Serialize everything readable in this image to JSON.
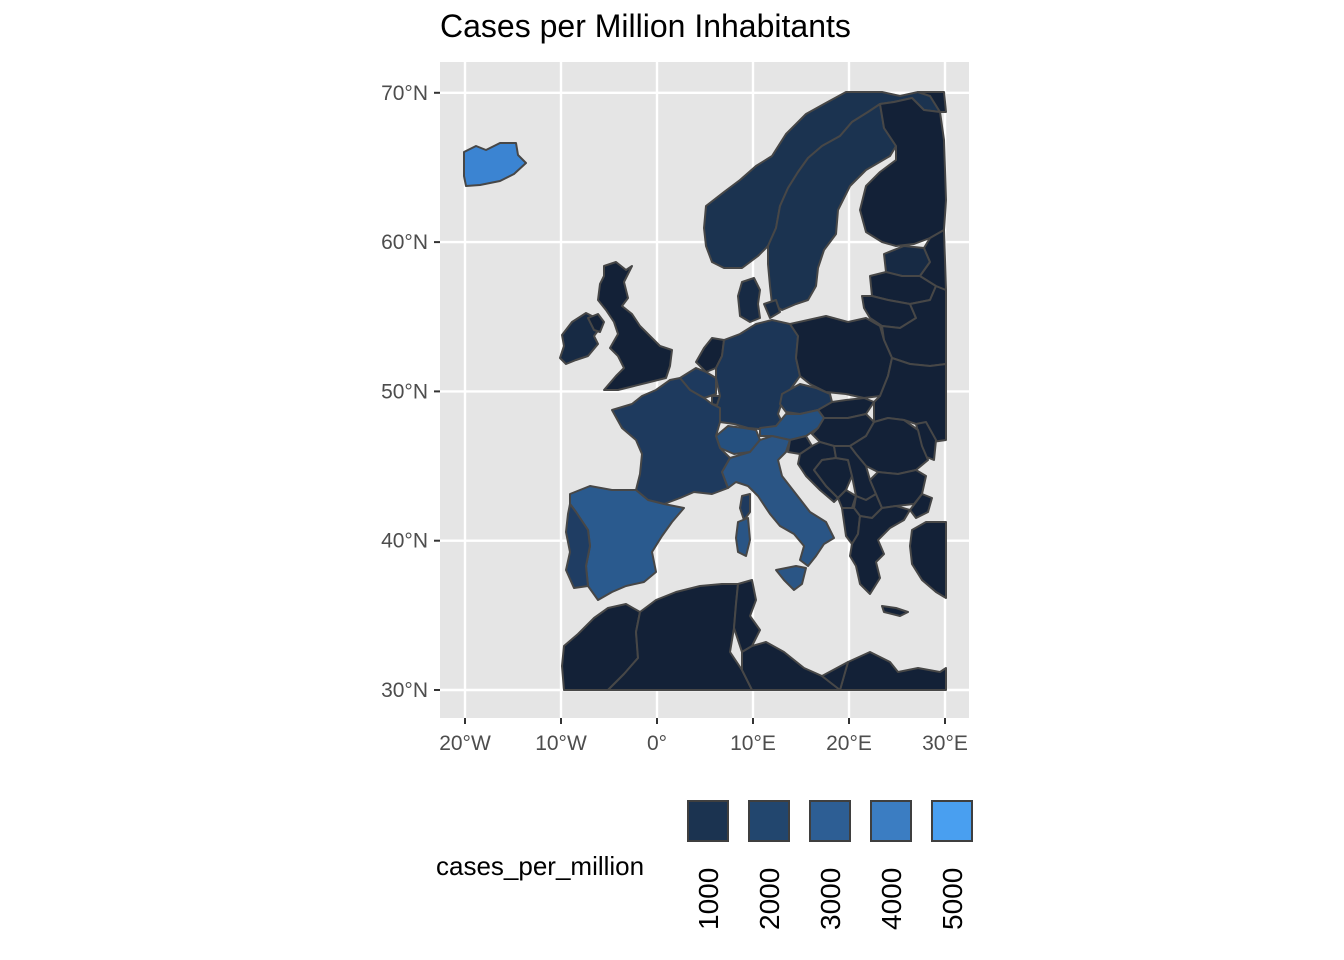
{
  "title": "Cases per Million Inhabitants",
  "map": {
    "panel_background": "#e5e5e5",
    "grid_color": "#ffffff",
    "border_color": "#474747",
    "x_ticks": [
      {
        "lon": -20,
        "label": "20°W"
      },
      {
        "lon": -10,
        "label": "10°W"
      },
      {
        "lon": 0,
        "label": "0°"
      },
      {
        "lon": 10,
        "label": "10°E"
      },
      {
        "lon": 20,
        "label": "20°E"
      },
      {
        "lon": 30,
        "label": "30°E"
      }
    ],
    "y_ticks": [
      {
        "lat": 30,
        "label": "30°N"
      },
      {
        "lat": 40,
        "label": "40°N"
      },
      {
        "lat": 50,
        "label": "50°N"
      },
      {
        "lat": 60,
        "label": "60°N"
      },
      {
        "lat": 70,
        "label": "70°N"
      }
    ]
  },
  "legend": {
    "title": "cases_per_million",
    "keys": [
      {
        "label": "1000",
        "color": "#1b3350"
      },
      {
        "label": "2000",
        "color": "#22466e"
      },
      {
        "label": "3000",
        "color": "#2d5e94"
      },
      {
        "label": "4000",
        "color": "#3b7dc2"
      },
      {
        "label": "5000",
        "color": "#499ff0"
      }
    ]
  },
  "fill_colors": {
    "darkest": "#132137",
    "dark": "#172a44",
    "nordic": "#1b3350",
    "central": "#1c3657",
    "france": "#1e3a5e",
    "italy": "#2a5585",
    "switzerland": "#25507f",
    "spain": "#2a5a8e",
    "portugal": "#1f3d63",
    "iceland": "#3b84d2"
  }
}
